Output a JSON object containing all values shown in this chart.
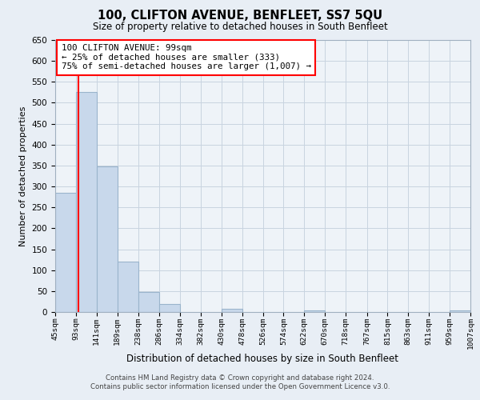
{
  "title": "100, CLIFTON AVENUE, BENFLEET, SS7 5QU",
  "subtitle": "Size of property relative to detached houses in South Benfleet",
  "xlabel": "Distribution of detached houses by size in South Benfleet",
  "ylabel": "Number of detached properties",
  "bins": [
    45,
    93,
    141,
    189,
    238,
    286,
    334,
    382,
    430,
    478,
    526,
    574,
    622,
    670,
    718,
    767,
    815,
    863,
    911,
    959,
    1007
  ],
  "counts": [
    284,
    525,
    347,
    121,
    48,
    20,
    0,
    0,
    8,
    0,
    0,
    0,
    4,
    0,
    0,
    0,
    0,
    0,
    0,
    4
  ],
  "bar_color": "#c8d8eb",
  "bar_edge_color": "#9ab4cc",
  "property_line_x": 99,
  "annotation_line1": "100 CLIFTON AVENUE: 99sqm",
  "annotation_line2": "← 25% of detached houses are smaller (333)",
  "annotation_line3": "75% of semi-detached houses are larger (1,007) →",
  "annotation_box_color": "red",
  "annotation_bg_color": "white",
  "property_line_color": "red",
  "ylim": [
    0,
    650
  ],
  "yticks": [
    0,
    50,
    100,
    150,
    200,
    250,
    300,
    350,
    400,
    450,
    500,
    550,
    600,
    650
  ],
  "tick_labels": [
    "45sqm",
    "93sqm",
    "141sqm",
    "189sqm",
    "238sqm",
    "286sqm",
    "334sqm",
    "382sqm",
    "430sqm",
    "478sqm",
    "526sqm",
    "574sqm",
    "622sqm",
    "670sqm",
    "718sqm",
    "767sqm",
    "815sqm",
    "863sqm",
    "911sqm",
    "959sqm",
    "1007sqm"
  ],
  "footnote1": "Contains HM Land Registry data © Crown copyright and database right 2024.",
  "footnote2": "Contains public sector information licensed under the Open Government Licence v3.0.",
  "grid_color": "#c8d4e0",
  "bg_color": "#e8eef5",
  "plot_bg_color": "#eef3f8"
}
